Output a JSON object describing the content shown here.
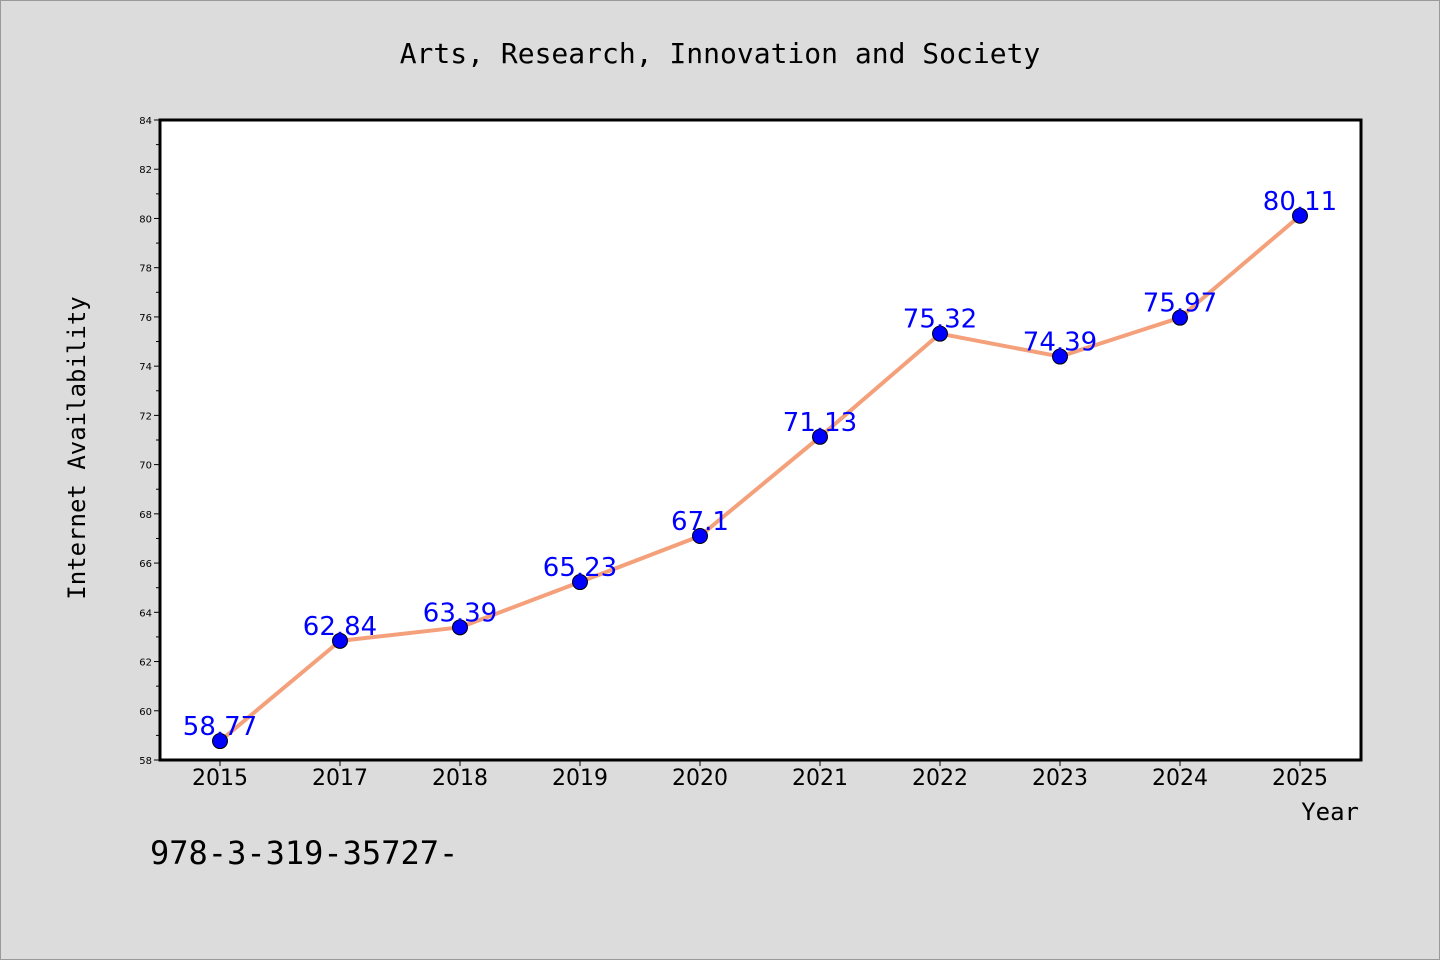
{
  "chart_data": {
    "type": "line",
    "title": "Arts, Research, Innovation and Society",
    "xlabel": "Year",
    "ylabel": "Internet Availability",
    "categories": [
      "2015",
      "2017",
      "2018",
      "2019",
      "2020",
      "2021",
      "2022",
      "2023",
      "2024",
      "2025"
    ],
    "series": [
      {
        "values": [
          58.77,
          62.84,
          63.39,
          65.23,
          67.1,
          71.13,
          75.32,
          74.39,
          75.97,
          80.11
        ],
        "data_labels": [
          "58.77",
          "62.84",
          "63.39",
          "65.23",
          "67.1",
          "71.13",
          "75.32",
          "74.39",
          "75.97",
          "80.11"
        ],
        "line_color": "#f4a07a",
        "marker_color": "#0000ff"
      }
    ],
    "ylim": [
      58,
      84
    ],
    "yticks": [
      "58",
      "60",
      "62",
      "64",
      "66",
      "68",
      "70",
      "72",
      "74",
      "76",
      "78",
      "80",
      "82",
      "84"
    ],
    "grid": false,
    "legend": "none"
  },
  "footnote": "978-3-319-35727-",
  "colors": {
    "background": "#dcdcdc",
    "plot_background": "#ffffff",
    "line": "#f4a07a",
    "marker": "#0000ff",
    "data_label": "#0000ff"
  }
}
